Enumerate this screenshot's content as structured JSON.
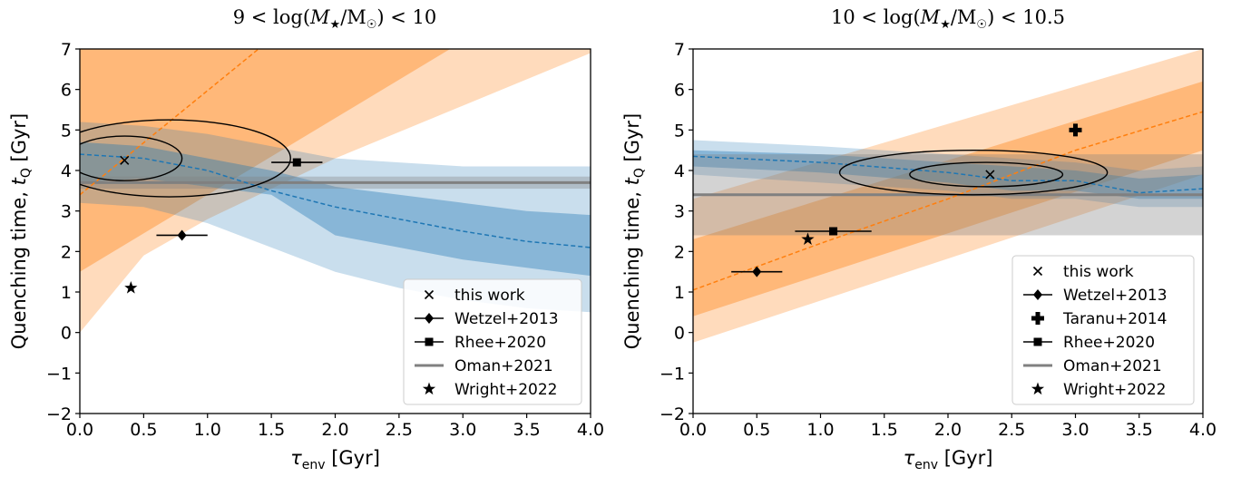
{
  "chart_data": [
    {
      "type": "line",
      "title": "9 < log(M★/M☉) < 10",
      "xlabel": "τ_env [Gyr]",
      "ylabel": "Quenching time, t_Q [Gyr]",
      "xlim": [
        0,
        4
      ],
      "ylim": [
        -2,
        7
      ],
      "xticks": [
        "0.0",
        "0.5",
        "1.0",
        "1.5",
        "2.0",
        "2.5",
        "3.0",
        "3.5",
        "4.0"
      ],
      "yticks": [
        "-2",
        "-1",
        "0",
        "1",
        "2",
        "3",
        "4",
        "5",
        "6",
        "7"
      ],
      "legend_position": "lower-right",
      "colors": {
        "orange": "#ff7f0e",
        "blue": "#1f77b4",
        "oman": "#808080",
        "black": "#000000"
      },
      "orange_median": {
        "x": [
          0,
          1.4
        ],
        "y": [
          3.4,
          7.0
        ]
      },
      "orange_inner_band": {
        "x": [
          0,
          2.9
        ],
        "upper": [
          7.0,
          7.0
        ],
        "lower": [
          1.5,
          7.0
        ]
      },
      "orange_outer_band": {
        "x": [
          0,
          0.5,
          1.0,
          2.0,
          3.0,
          4.0
        ],
        "upper": [
          7.0,
          7.0,
          7.0,
          7.0,
          7.0,
          7.0
        ],
        "lower": [
          0.0,
          1.9,
          2.8,
          4.3,
          5.6,
          6.9
        ]
      },
      "blue_median": {
        "x": [
          0,
          0.5,
          1.0,
          1.5,
          2.0,
          2.5,
          3.0,
          3.5,
          4.0
        ],
        "y": [
          4.4,
          4.3,
          4.0,
          3.5,
          3.1,
          2.8,
          2.5,
          2.25,
          2.1
        ]
      },
      "blue_inner_band": {
        "x": [
          0,
          0.5,
          1.0,
          1.5,
          2.0,
          2.5,
          3.0,
          3.5,
          4.0
        ],
        "upper": [
          4.7,
          4.6,
          4.3,
          4.0,
          3.6,
          3.4,
          3.2,
          3.0,
          2.9
        ],
        "lower": [
          3.7,
          3.8,
          3.6,
          3.4,
          2.4,
          2.1,
          1.8,
          1.6,
          1.4
        ]
      },
      "blue_outer_band": {
        "x": [
          0,
          0.5,
          1.0,
          1.5,
          2.0,
          2.5,
          3.0,
          3.5,
          4.0
        ],
        "upper": [
          5.2,
          5.1,
          4.9,
          4.6,
          4.3,
          4.2,
          4.1,
          4.1,
          4.1
        ],
        "lower": [
          3.2,
          3.1,
          2.7,
          2.1,
          1.5,
          1.1,
          0.8,
          0.6,
          0.5
        ]
      },
      "oman_band": {
        "value": 3.7,
        "lower": 3.55,
        "upper": 3.85
      },
      "contours": [
        {
          "center": [
            0.35,
            4.3
          ],
          "rx": 0.45,
          "ry": 0.55
        },
        {
          "center": [
            0.7,
            4.3
          ],
          "rx": 0.95,
          "ry": 0.95
        }
      ],
      "points": {
        "this_work": {
          "x": 0.35,
          "y": 4.25
        },
        "wetzel_2013": {
          "x": 0.8,
          "y": 2.4,
          "xerr": 0.2
        },
        "rhee_2020": {
          "x": 1.7,
          "y": 4.2,
          "xerr": 0.2
        },
        "wright_2022": {
          "x": 0.4,
          "y": 1.1
        }
      },
      "legend": [
        "this work",
        "Wetzel+2013",
        "Rhee+2020",
        "Oman+2021",
        "Wright+2022"
      ]
    },
    {
      "type": "line",
      "title": "10 < log(M★/M☉) < 10.5",
      "xlabel": "τ_env [Gyr]",
      "ylabel": "Quenching time, t_Q [Gyr]",
      "xlim": [
        0,
        4
      ],
      "ylim": [
        -2,
        7
      ],
      "xticks": [
        "0.0",
        "0.5",
        "1.0",
        "1.5",
        "2.0",
        "2.5",
        "3.0",
        "3.5",
        "4.0"
      ],
      "yticks": [
        "-2",
        "-1",
        "0",
        "1",
        "2",
        "3",
        "4",
        "5",
        "6",
        "7"
      ],
      "legend_position": "lower-right",
      "colors": {
        "orange": "#ff7f0e",
        "blue": "#1f77b4",
        "oman": "#808080",
        "black": "#000000"
      },
      "orange_median": {
        "x": [
          0,
          1.0,
          2.0,
          3.0,
          4.0
        ],
        "y": [
          1.05,
          2.2,
          3.3,
          4.5,
          5.45
        ]
      },
      "orange_inner_band": {
        "x": [
          0,
          4.0
        ],
        "upper": [
          2.3,
          6.2
        ],
        "lower": [
          0.4,
          4.5
        ]
      },
      "orange_outer_band": {
        "x": [
          0,
          4.0
        ],
        "upper": [
          3.3,
          7.0
        ],
        "lower": [
          -0.25,
          3.9
        ]
      },
      "blue_median": {
        "x": [
          0,
          1.0,
          2.0,
          2.5,
          3.0,
          3.5,
          4.0
        ],
        "y": [
          4.35,
          4.2,
          3.95,
          3.75,
          3.75,
          3.45,
          3.55
        ]
      },
      "blue_inner_band": {
        "x": [
          0,
          1.0,
          2.0,
          2.5,
          3.0,
          3.5,
          4.0
        ],
        "upper": [
          4.5,
          4.4,
          4.2,
          4.1,
          4.0,
          3.8,
          3.9
        ],
        "lower": [
          4.1,
          3.95,
          3.7,
          3.5,
          3.5,
          3.3,
          3.3
        ]
      },
      "blue_outer_band": {
        "x": [
          0,
          1.0,
          2.0,
          2.5,
          3.0,
          3.5,
          4.0
        ],
        "upper": [
          4.75,
          4.6,
          4.4,
          4.3,
          4.2,
          4.0,
          4.1
        ],
        "lower": [
          3.9,
          3.7,
          3.5,
          3.3,
          3.3,
          3.1,
          3.1
        ]
      },
      "oman_band": {
        "value": 3.4,
        "lower": 2.4,
        "upper": 4.4
      },
      "contours": [
        {
          "center": [
            2.3,
            3.9
          ],
          "rx": 0.6,
          "ry": 0.3
        },
        {
          "center": [
            2.2,
            3.95
          ],
          "rx": 1.05,
          "ry": 0.55
        }
      ],
      "points": {
        "this_work": {
          "x": 2.33,
          "y": 3.9
        },
        "wetzel_2013": {
          "x": 0.5,
          "y": 1.5,
          "xerr": 0.2
        },
        "taranu_2014": {
          "x": 3.0,
          "y": 5.0
        },
        "rhee_2020": {
          "x": 1.1,
          "y": 2.5,
          "xerr": 0.3
        },
        "wright_2022": {
          "x": 0.9,
          "y": 2.3
        }
      },
      "legend": [
        "this work",
        "Wetzel+2013",
        "Taranu+2014",
        "Rhee+2020",
        "Oman+2021",
        "Wright+2022"
      ]
    }
  ]
}
